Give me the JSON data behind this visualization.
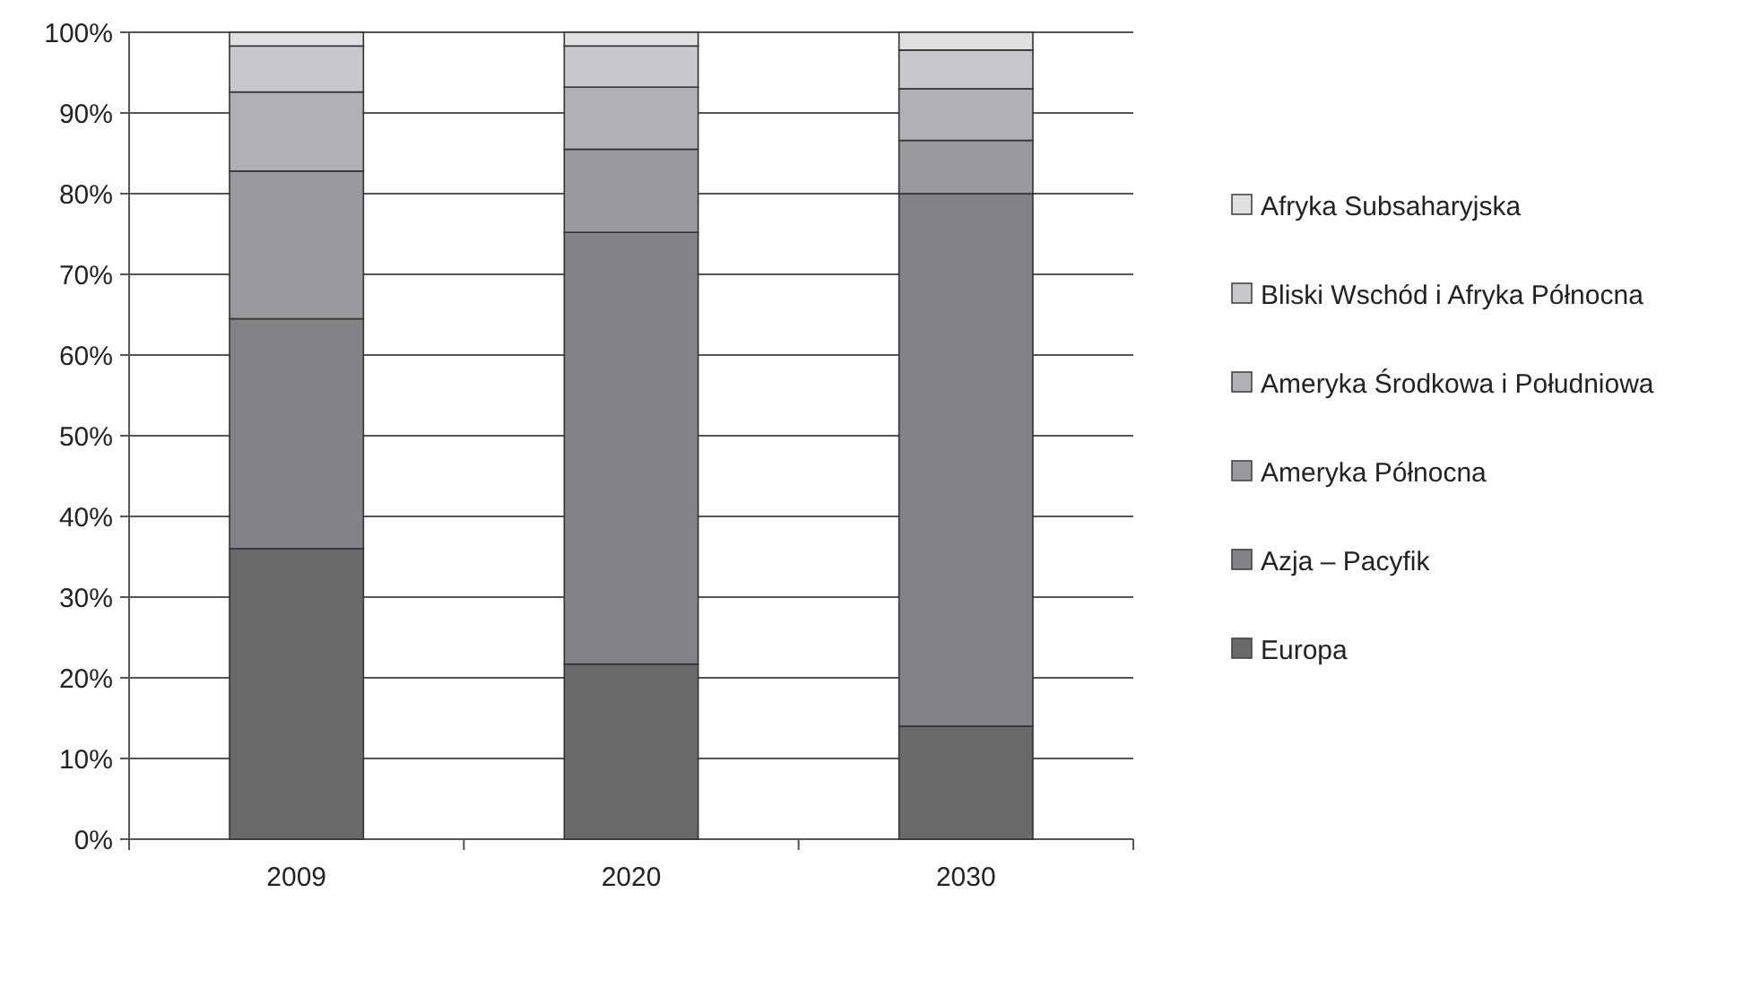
{
  "chart_data": {
    "type": "bar",
    "stacked": true,
    "categories": [
      "2009",
      "2020",
      "2030"
    ],
    "series": [
      {
        "name": "Europa",
        "color": "#696969",
        "values": [
          36,
          21.7,
          14
        ]
      },
      {
        "name": "Azja – Pacyfik",
        "color": "#838387",
        "values": [
          28.5,
          53.5,
          66
        ]
      },
      {
        "name": "Ameryka Północna",
        "color": "#9a9a9e",
        "values": [
          18.3,
          10.3,
          6.6
        ]
      },
      {
        "name": "Ameryka Środkowa i Południowa",
        "color": "#b1b1b5",
        "values": [
          9.8,
          7.7,
          6.4
        ]
      },
      {
        "name": "Bliski Wschód i Afryka Północna",
        "color": "#c8c8ca",
        "values": [
          5.7,
          5.1,
          4.8
        ]
      },
      {
        "name": "Afryka Subsaharyjska",
        "color": "#e0e0e0",
        "values": [
          1.7,
          1.7,
          2.2
        ]
      }
    ],
    "ylim": [
      0,
      100
    ],
    "yticks": [
      {
        "value": 0,
        "label": "0%"
      },
      {
        "value": 10,
        "label": "10%"
      },
      {
        "value": 20,
        "label": "20%"
      },
      {
        "value": 30,
        "label": "30%"
      },
      {
        "value": 40,
        "label": "40%"
      },
      {
        "value": 50,
        "label": "50%"
      },
      {
        "value": 60,
        "label": "60%"
      },
      {
        "value": 70,
        "label": "70%"
      },
      {
        "value": 80,
        "label": "80%"
      },
      {
        "value": 90,
        "label": "90%"
      },
      {
        "value": 100,
        "label": "100%"
      }
    ],
    "grid": "y",
    "legend": "right"
  }
}
